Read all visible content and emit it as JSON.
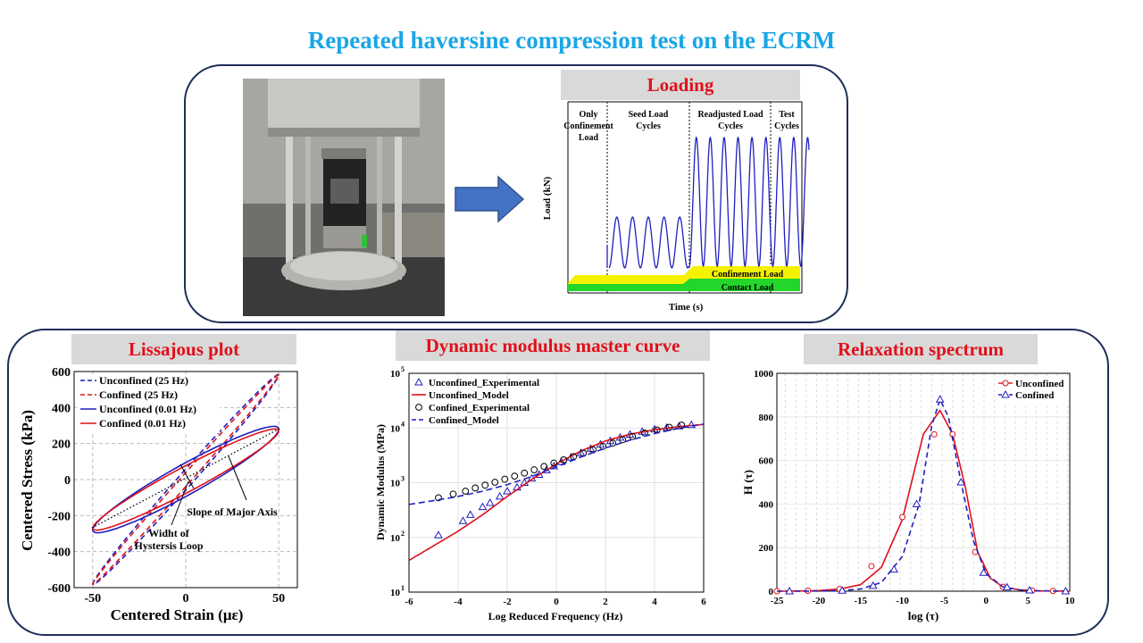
{
  "title": "Repeated haversine compression test on the ECRM",
  "loading": {
    "header": "Loading",
    "phases": [
      "Only Confinement Load",
      "Seed Load Cycles",
      "Readjusted Load Cycles",
      "Test Cycles"
    ],
    "ylabel": "Load (kN)",
    "xlabel": "Time (s)",
    "confinement_label": "Confinement Load",
    "contact_label": "Contact Load",
    "colors": {
      "wave": "#1f1fbf",
      "confinement": "#f5f200",
      "contact": "#22d62a"
    }
  },
  "lissajous": {
    "header": "Lissajous plot",
    "xlabel": "Centered Strain (με)",
    "ylabel": "Centered Stress (kPa)",
    "xticks": [
      "-50",
      "0",
      "50"
    ],
    "yticks": [
      "600",
      "400",
      "200",
      "0",
      "-200",
      "-400",
      "-600"
    ],
    "annotations": {
      "slope": "Slope of Major Axis",
      "width_line1": "Widht of",
      "width_line2": "Hystersis Loop"
    },
    "legend": [
      "Unconfined (25 Hz)",
      "Confined (25 Hz)",
      "Unconfined (0.01 Hz)",
      "Confined (0.01 Hz)"
    ]
  },
  "master": {
    "header": "Dynamic modulus master curve",
    "xlabel": "Log Reduced Frequency (Hz)",
    "ylabel": "Dynamic Modulus (MPa)",
    "xticks": [
      "-6",
      "-4",
      "-2",
      "0",
      "2",
      "4",
      "6"
    ],
    "ytick_base": "10",
    "ytick_exps": [
      "5",
      "4",
      "3",
      "2",
      "1"
    ],
    "legend": [
      "Unconfined_Experimental",
      "Unconfined_Model",
      "Confined_Experimental",
      "Confined_Model"
    ]
  },
  "relax": {
    "header": "Relaxation spectrum",
    "xlabel": "log (τ)",
    "ylabel": "H (τ)",
    "xticks": [
      "-25",
      "-20",
      "-15",
      "-10",
      "-5",
      "0",
      "5",
      "10"
    ],
    "yticks": [
      "1000",
      "800",
      "600",
      "400",
      "200",
      "0"
    ],
    "legend": [
      "Unconfined",
      "Confined"
    ]
  },
  "chart_data": [
    {
      "type": "line",
      "title": "Lissajous plot",
      "xlabel": "Centered Strain (με)",
      "ylabel": "Centered Stress (kPa)",
      "xlim": [
        -60,
        60
      ],
      "ylim": [
        -600,
        600
      ],
      "series": [
        {
          "name": "Unconfined (25 Hz)",
          "style": "dashed",
          "color": "#1f1fbf",
          "ellipse": {
            "amp_x": 50,
            "amp_y": 580,
            "loop_width": 12
          }
        },
        {
          "name": "Confined (25 Hz)",
          "style": "dashed",
          "color": "#e0101a",
          "ellipse": {
            "amp_x": 50,
            "amp_y": 580,
            "loop_width": 8
          }
        },
        {
          "name": "Unconfined (0.01 Hz)",
          "style": "solid",
          "color": "#1f1fbf",
          "ellipse": {
            "amp_x": 50,
            "amp_y": 280,
            "loop_width": 40
          }
        },
        {
          "name": "Confined (0.01 Hz)",
          "style": "solid",
          "color": "#e0101a",
          "ellipse": {
            "amp_x": 50,
            "amp_y": 270,
            "loop_width": 34
          }
        }
      ]
    },
    {
      "type": "scatter",
      "title": "Dynamic modulus master curve",
      "xlabel": "Log Reduced Frequency (Hz)",
      "ylabel": "Dynamic Modulus (MPa)",
      "xlim": [
        -6,
        6
      ],
      "ylim": [
        10,
        100000
      ],
      "yscale": "log",
      "series": [
        {
          "name": "Unconfined_Experimental",
          "marker": "triangle",
          "color": "#1f1fbf",
          "x": [
            -4.8,
            -3.8,
            -3.5,
            -3.0,
            -2.7,
            -2.3,
            -2.0,
            -1.6,
            -1.3,
            -1.0,
            -0.7,
            -0.4,
            -0.1,
            0.2,
            0.6,
            1.0,
            1.4,
            1.8,
            2.2,
            2.6,
            3.0,
            3.5,
            4.0,
            4.5,
            5.0,
            5.5
          ],
          "y": [
            110,
            200,
            260,
            360,
            430,
            560,
            700,
            820,
            1000,
            1200,
            1400,
            1700,
            2000,
            2400,
            2900,
            3500,
            4200,
            5000,
            5800,
            6700,
            7600,
            8600,
            9500,
            10200,
            10800,
            11400
          ]
        },
        {
          "name": "Unconfined_Model",
          "line": "solid",
          "color": "#e0101a",
          "x": [
            -6,
            -5,
            -4,
            -3,
            -2,
            -1,
            0,
            1,
            2,
            3,
            4,
            5,
            6
          ],
          "y": [
            38,
            70,
            130,
            260,
            560,
            1150,
            2200,
            3800,
            5800,
            7700,
            9300,
            10600,
            11600
          ]
        },
        {
          "name": "Confined_Experimental",
          "marker": "circle",
          "color": "#000000",
          "x": [
            -4.8,
            -4.2,
            -3.7,
            -3.3,
            -2.9,
            -2.5,
            -2.1,
            -1.7,
            -1.3,
            -0.9,
            -0.5,
            -0.1,
            0.3,
            0.7,
            1.1,
            1.5,
            1.9,
            2.3,
            2.7,
            3.1,
            3.6,
            4.1,
            4.6,
            5.1
          ],
          "y": [
            530,
            620,
            700,
            800,
            900,
            1020,
            1160,
            1320,
            1500,
            1720,
            1980,
            2280,
            2620,
            3000,
            3450,
            4000,
            4600,
            5300,
            6100,
            7000,
            8100,
            9200,
            10300,
            11300
          ]
        },
        {
          "name": "Confined_Model",
          "line": "dashed",
          "color": "#1f1fbf",
          "x": [
            -6,
            -5,
            -4,
            -3,
            -2,
            -1,
            0,
            1,
            2,
            3,
            4,
            5,
            6
          ],
          "y": [
            400,
            470,
            560,
            700,
            920,
            1300,
            1950,
            2950,
            4300,
            6000,
            7900,
            9900,
            11800
          ]
        }
      ]
    },
    {
      "type": "line",
      "title": "Relaxation spectrum",
      "xlabel": "log (τ)",
      "ylabel": "H (τ)",
      "xlim": [
        -25,
        10
      ],
      "ylim": [
        0,
        1000
      ],
      "series": [
        {
          "name": "Unconfined",
          "marker": "circle",
          "color": "#e0101a",
          "x": [
            -25,
            -22.5,
            -20,
            -17.5,
            -15,
            -12.5,
            -10,
            -7.5,
            -5.5,
            -4,
            -2.5,
            -1,
            0.5,
            2,
            4,
            6,
            8,
            10
          ],
          "y": [
            0,
            1,
            3,
            10,
            30,
            110,
            330,
            720,
            830,
            720,
            480,
            180,
            60,
            20,
            6,
            2,
            1,
            0
          ],
          "markers_x": [
            -25,
            -21.3,
            -17.5,
            -13.7,
            -10,
            -6.2,
            -4,
            -1.3,
            2,
            5.5,
            8
          ],
          "markers_y": [
            0,
            2,
            10,
            115,
            340,
            720,
            720,
            180,
            20,
            3,
            1
          ]
        },
        {
          "name": "Confined",
          "marker": "triangle",
          "color": "#1f1fbf",
          "x": [
            -25,
            -22.5,
            -20,
            -17.5,
            -15,
            -12.5,
            -10,
            -8,
            -6.5,
            -5.5,
            -4.5,
            -3,
            -1.5,
            0,
            2,
            4,
            6,
            8,
            10
          ],
          "y": [
            0,
            0,
            1,
            3,
            10,
            40,
            160,
            400,
            760,
            880,
            800,
            500,
            230,
            80,
            20,
            6,
            2,
            1,
            0
          ],
          "markers_x": [
            -23.5,
            -17.2,
            -13.5,
            -11,
            -8.3,
            -5.5,
            -3,
            -0.3,
            2.5,
            5.2,
            9.5
          ],
          "markers_y": [
            0,
            3,
            25,
            100,
            400,
            880,
            500,
            85,
            18,
            4,
            0
          ]
        }
      ]
    }
  ]
}
